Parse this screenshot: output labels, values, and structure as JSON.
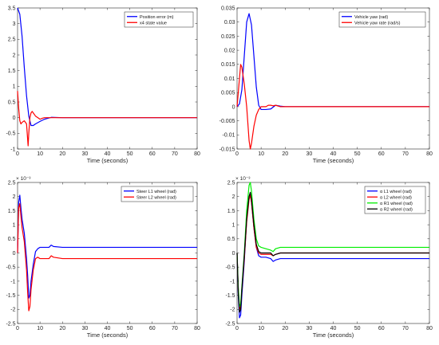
{
  "chart_data": [
    {
      "type": "line",
      "xlabel": "Time (seconds)",
      "xlim": [
        0,
        80
      ],
      "ylim": [
        -1,
        3.5
      ],
      "xticks": [
        0,
        10,
        20,
        30,
        40,
        50,
        60,
        70,
        80
      ],
      "yticks": [
        -1,
        -0.5,
        0,
        0.5,
        1,
        1.5,
        2,
        2.5,
        3,
        3.5
      ],
      "ytick_labels": [
        "-1",
        "-0.5",
        "0",
        "0.5",
        "1",
        "1.5",
        "2",
        "2.5",
        "3",
        "3.5"
      ],
      "exponent_label": "",
      "legend_position": "top-right",
      "grid": false,
      "series": [
        {
          "name": "Position error (m)",
          "color": "#0000ff",
          "x": [
            0,
            1,
            2,
            3,
            4,
            5,
            6,
            7,
            8,
            10,
            12,
            14,
            15,
            20,
            40,
            80
          ],
          "y": [
            3.5,
            3.3,
            2.6,
            1.6,
            0.7,
            0.05,
            -0.25,
            -0.25,
            -0.2,
            -0.12,
            -0.05,
            -0.01,
            0.01,
            0,
            0,
            0
          ]
        },
        {
          "name": "x4 state value",
          "color": "#ff0000",
          "x": [
            0,
            0.5,
            1,
            1.5,
            2,
            3,
            4,
            4.7,
            5,
            5.5,
            6,
            6.5,
            7,
            8,
            9,
            10,
            11,
            12,
            15,
            20,
            40,
            80
          ],
          "y": [
            0.85,
            0.3,
            -0.1,
            -0.2,
            -0.15,
            -0.1,
            -0.2,
            -0.9,
            -0.5,
            0,
            0.15,
            0.2,
            0.15,
            0.05,
            0,
            -0.05,
            -0.02,
            0,
            0,
            0,
            0,
            0
          ]
        }
      ]
    },
    {
      "type": "line",
      "xlabel": "Time (seconds)",
      "xlim": [
        0,
        80
      ],
      "ylim": [
        -0.015,
        0.035
      ],
      "xticks": [
        0,
        10,
        20,
        30,
        40,
        50,
        60,
        70,
        80
      ],
      "yticks": [
        -0.015,
        -0.01,
        -0.005,
        0,
        0.005,
        0.01,
        0.015,
        0.02,
        0.025,
        0.03,
        0.035
      ],
      "ytick_labels": [
        "-0.015",
        "-0.01",
        "-0.005",
        "0",
        "0.005",
        "0.01",
        "0.015",
        "0.02",
        "0.025",
        "0.03",
        "0.035"
      ],
      "exponent_label": "",
      "legend_position": "top-right",
      "grid": false,
      "series": [
        {
          "name": "Vehicle yaw (rad)",
          "color": "#0000ff",
          "x": [
            0,
            1,
            2,
            3,
            4,
            5,
            6,
            7,
            8,
            9,
            10,
            12,
            14,
            16,
            18,
            20,
            40,
            80
          ],
          "y": [
            0,
            0.001,
            0.006,
            0.018,
            0.03,
            0.033,
            0.029,
            0.018,
            0.007,
            0.0005,
            -0.001,
            -0.001,
            -0.0008,
            0.0005,
            0.0002,
            0,
            0,
            0
          ]
        },
        {
          "name": "Vehicle yaw rate (rad/s)",
          "color": "#ff0000",
          "x": [
            0,
            1,
            1.5,
            2,
            3,
            4,
            4.5,
            5,
            5.5,
            6,
            7,
            8,
            9,
            10,
            12,
            13,
            14,
            15,
            16,
            18,
            20,
            40,
            80
          ],
          "y": [
            0,
            0.01,
            0.015,
            0.014,
            0.008,
            0,
            -0.006,
            -0.012,
            -0.015,
            -0.013,
            -0.007,
            -0.003,
            -0.001,
            0,
            0,
            0.0005,
            0.0005,
            0.0003,
            0.0005,
            0,
            0,
            0,
            0
          ]
        }
      ]
    },
    {
      "type": "line",
      "xlabel": "Time (seconds)",
      "xlim": [
        0,
        80
      ],
      "ylim": [
        -2.5,
        2.5
      ],
      "xticks": [
        0,
        10,
        20,
        30,
        40,
        50,
        60,
        70,
        80
      ],
      "yticks": [
        -2.5,
        -2,
        -1.5,
        -1,
        -0.5,
        0,
        0.5,
        1,
        1.5,
        2,
        2.5
      ],
      "ytick_labels": [
        "-2.5",
        "-2",
        "-1.5",
        "-1",
        "-0.5",
        "0",
        "0.5",
        "1",
        "1.5",
        "2",
        "2.5"
      ],
      "exponent_label": "× 10⁻³",
      "legend_position": "top-right",
      "grid": false,
      "series": [
        {
          "name": "Steer L1 wheel (rad)",
          "color": "#0000ff",
          "x": [
            0,
            0.5,
            1,
            1.5,
            2,
            3,
            4,
            4.5,
            5,
            5.5,
            6,
            7,
            8,
            9,
            10,
            12,
            14,
            15,
            16,
            20,
            40,
            80
          ],
          "y": [
            0,
            1.8,
            2.05,
            1.6,
            1.2,
            0.7,
            -0.2,
            -0.8,
            -1.6,
            -1.5,
            -1.0,
            -0.4,
            0.05,
            0.15,
            0.2,
            0.2,
            0.2,
            0.28,
            0.23,
            0.2,
            0.2,
            0.2
          ]
        },
        {
          "name": "Steer L2 wheel (rad)",
          "color": "#ff0000",
          "x": [
            0,
            0.5,
            1,
            1.5,
            2,
            3,
            4,
            4.5,
            5,
            5.5,
            6,
            7,
            8,
            9,
            10,
            12,
            14,
            15,
            16,
            20,
            40,
            80
          ],
          "y": [
            0,
            1.6,
            1.75,
            1.3,
            0.9,
            0.4,
            -0.6,
            -1.4,
            -2.05,
            -1.9,
            -1.3,
            -0.6,
            -0.2,
            -0.15,
            -0.2,
            -0.2,
            -0.2,
            -0.1,
            -0.15,
            -0.2,
            -0.2,
            -0.2
          ]
        }
      ]
    },
    {
      "type": "line",
      "xlabel": "Time (seconds)",
      "xlim": [
        0,
        80
      ],
      "ylim": [
        -2.5,
        2.5
      ],
      "xticks": [
        0,
        10,
        20,
        30,
        40,
        50,
        60,
        70,
        80
      ],
      "yticks": [
        -2.5,
        -2,
        -1.5,
        -1,
        -0.5,
        0,
        0.5,
        1,
        1.5,
        2,
        2.5
      ],
      "ytick_labels": [
        "-2.5",
        "-2",
        "-1.5",
        "-1",
        "-0.5",
        "0",
        "0.5",
        "1",
        "1.5",
        "2",
        "2.5"
      ],
      "exponent_label": "× 10⁻³",
      "legend_position": "top-right",
      "grid": false,
      "series": [
        {
          "name": "α L1 wheel (rad)",
          "color": "#0000ff",
          "x": [
            0,
            0.5,
            1,
            1.5,
            2,
            3,
            4,
            5,
            5.5,
            6,
            7,
            8,
            9,
            10,
            12,
            14,
            15,
            16,
            18,
            20,
            40,
            80
          ],
          "y": [
            0,
            -1.5,
            -2.3,
            -2.2,
            -1.5,
            -0.3,
            1.2,
            2.0,
            2.1,
            1.8,
            0.9,
            0.2,
            -0.1,
            -0.15,
            -0.15,
            -0.2,
            -0.3,
            -0.25,
            -0.2,
            -0.2,
            -0.2,
            -0.2
          ]
        },
        {
          "name": "α L2 wheel (rad)",
          "color": "#ff0000",
          "x": [
            0,
            0.5,
            1,
            1.5,
            2,
            3,
            4,
            5,
            5.5,
            6,
            7,
            8,
            9,
            10,
            12,
            14,
            15,
            16,
            18,
            20,
            40,
            80
          ],
          "y": [
            0,
            -1.3,
            -2.0,
            -1.9,
            -1.3,
            -0.2,
            1.1,
            1.9,
            2.05,
            1.8,
            0.9,
            0.2,
            0,
            -0.05,
            -0.05,
            -0.05,
            -0.1,
            -0.05,
            0,
            0,
            0,
            0
          ]
        },
        {
          "name": "α R1 wheel (rad)",
          "color": "#00ee00",
          "x": [
            0,
            0.5,
            1,
            1.5,
            2,
            3,
            4,
            5,
            5.5,
            6,
            7,
            8,
            9,
            10,
            12,
            14,
            15,
            16,
            18,
            20,
            40,
            80
          ],
          "y": [
            0,
            -1.2,
            -1.9,
            -1.8,
            -1.2,
            0,
            1.5,
            2.4,
            2.5,
            2.2,
            1.2,
            0.5,
            0.25,
            0.2,
            0.15,
            0.1,
            0.05,
            0.15,
            0.2,
            0.2,
            0.2,
            0.2
          ]
        },
        {
          "name": "α R2 wheel (rad)",
          "color": "#000000",
          "x": [
            0,
            0.5,
            1,
            1.5,
            2,
            3,
            4,
            5,
            5.5,
            6,
            7,
            8,
            9,
            10,
            12,
            14,
            15,
            16,
            18,
            20,
            40,
            80
          ],
          "y": [
            0,
            -1.4,
            -2.1,
            -2.0,
            -1.3,
            -0.1,
            1.2,
            2.0,
            2.15,
            1.9,
            1.0,
            0.3,
            0.05,
            0,
            0,
            0,
            -0.1,
            -0.05,
            0,
            0,
            0,
            0
          ]
        }
      ]
    }
  ]
}
